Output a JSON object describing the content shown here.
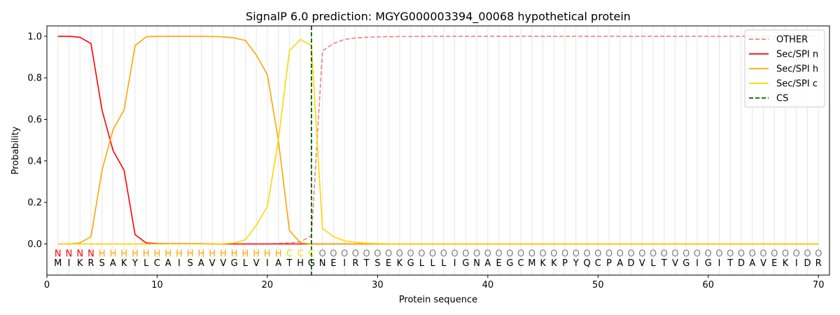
{
  "chart_data": {
    "type": "line",
    "title": "SignalP 6.0 prediction: MGYG000003394_00068 hypothetical protein",
    "xlabel": "Protein sequence",
    "ylabel": "Probability",
    "xlim": [
      0,
      71
    ],
    "ylim": [
      -0.15,
      1.05
    ],
    "x_ticks": [
      0,
      10,
      20,
      30,
      40,
      50,
      60,
      70
    ],
    "y_ticks": [
      0.0,
      0.2,
      0.4,
      0.6,
      0.8,
      1.0
    ],
    "x_tick_labels": [
      "0",
      "10",
      "20",
      "30",
      "40",
      "50",
      "60",
      "70"
    ],
    "y_tick_labels": [
      "0.0",
      "0.2",
      "0.4",
      "0.6",
      "0.8",
      "1.0"
    ],
    "grid": "vertical lines at each residue",
    "legend_position": "top-right",
    "sequence": [
      "M",
      "I",
      "K",
      "R",
      "S",
      "A",
      "K",
      "Y",
      "L",
      "C",
      "A",
      "I",
      "S",
      "A",
      "V",
      "V",
      "G",
      "L",
      "V",
      "I",
      "A",
      "T",
      "H",
      "G",
      "N",
      "E",
      "I",
      "R",
      "T",
      "S",
      "E",
      "K",
      "G",
      "L",
      "L",
      "L",
      "I",
      "G",
      "N",
      "A",
      "E",
      "G",
      "C",
      "M",
      "K",
      "K",
      "P",
      "Y",
      "Q",
      "C",
      "P",
      "A",
      "D",
      "V",
      "L",
      "T",
      "V",
      "G",
      "I",
      "G",
      "I",
      "T",
      "D",
      "A",
      "V",
      "E",
      "K",
      "I",
      "D",
      "R"
    ],
    "labels": [
      "N",
      "N",
      "N",
      "N",
      "H",
      "H",
      "H",
      "H",
      "H",
      "H",
      "H",
      "H",
      "H",
      "H",
      "H",
      "H",
      "H",
      "H",
      "H",
      "H",
      "H",
      "C",
      "C",
      "C",
      "O",
      "O",
      "O",
      "O",
      "O",
      "O",
      "O",
      "O",
      "O",
      "O",
      "O",
      "O",
      "O",
      "O",
      "O",
      "O",
      "O",
      "O",
      "O",
      "O",
      "O",
      "O",
      "O",
      "O",
      "O",
      "O",
      "O",
      "O",
      "O",
      "O",
      "O",
      "O",
      "O",
      "O",
      "O",
      "O",
      "O",
      "O",
      "O",
      "O",
      "O",
      "O",
      "O",
      "O",
      "O",
      "O"
    ],
    "label_colors": {
      "N": "#ff0000",
      "H": "#ffa500",
      "C": "#ffd700",
      "O": "#808080"
    },
    "cs_position": 24,
    "series": [
      {
        "name": "OTHER",
        "color": "#f08080",
        "style": "dashed",
        "values": [
          0.0,
          0.0,
          0.0,
          0.0,
          0.0,
          0.0,
          0.0,
          0.0,
          0.0,
          0.0,
          0.0,
          0.0,
          0.0,
          0.0,
          0.0,
          0.0,
          0.0,
          0.0,
          0.0,
          0.0,
          0.002,
          0.005,
          0.01,
          0.04,
          0.93,
          0.965,
          0.985,
          0.992,
          0.995,
          0.997,
          0.998,
          0.999,
          0.999,
          1.0,
          1.0,
          1.0,
          1.0,
          1.0,
          1.0,
          1.0,
          1.0,
          1.0,
          1.0,
          1.0,
          1.0,
          1.0,
          1.0,
          1.0,
          1.0,
          1.0,
          1.0,
          1.0,
          1.0,
          1.0,
          1.0,
          1.0,
          1.0,
          1.0,
          1.0,
          1.0,
          1.0,
          1.0,
          1.0,
          1.0,
          1.0,
          1.0,
          1.0,
          1.0,
          1.0,
          1.0
        ]
      },
      {
        "name": "Sec/SPI n",
        "color": "#ff0000",
        "style": "solid",
        "values": [
          1.0,
          1.0,
          0.995,
          0.965,
          0.645,
          0.45,
          0.355,
          0.045,
          0.005,
          0.002,
          0.001,
          0.001,
          0.001,
          0.001,
          0.0,
          0.0,
          0.0,
          0.0,
          0.0,
          0.0,
          0.0,
          0.0,
          0.0,
          0.0,
          0.0,
          0.0,
          0.0,
          0.0,
          0.0,
          0.0,
          0.0,
          0.0,
          0.0,
          0.0,
          0.0,
          0.0,
          0.0,
          0.0,
          0.0,
          0.0,
          0.0,
          0.0,
          0.0,
          0.0,
          0.0,
          0.0,
          0.0,
          0.0,
          0.0,
          0.0,
          0.0,
          0.0,
          0.0,
          0.0,
          0.0,
          0.0,
          0.0,
          0.0,
          0.0,
          0.0,
          0.0,
          0.0,
          0.0,
          0.0,
          0.0,
          0.0,
          0.0,
          0.0,
          0.0,
          0.0
        ]
      },
      {
        "name": "Sec/SPI h",
        "color": "#ffa500",
        "style": "solid",
        "values": [
          0.0,
          0.0,
          0.005,
          0.035,
          0.355,
          0.55,
          0.645,
          0.955,
          0.997,
          1.0,
          1.0,
          1.0,
          1.0,
          1.0,
          0.999,
          0.997,
          0.992,
          0.98,
          0.91,
          0.815,
          0.5,
          0.065,
          0.005,
          0.0,
          0.0,
          0.0,
          0.0,
          0.0,
          0.0,
          0.0,
          0.0,
          0.0,
          0.0,
          0.0,
          0.0,
          0.0,
          0.0,
          0.0,
          0.0,
          0.0,
          0.0,
          0.0,
          0.0,
          0.0,
          0.0,
          0.0,
          0.0,
          0.0,
          0.0,
          0.0,
          0.0,
          0.0,
          0.0,
          0.0,
          0.0,
          0.0,
          0.0,
          0.0,
          0.0,
          0.0,
          0.0,
          0.0,
          0.0,
          0.0,
          0.0,
          0.0,
          0.0,
          0.0,
          0.0,
          0.0
        ]
      },
      {
        "name": "Sec/SPI c",
        "color": "#ffd700",
        "style": "solid",
        "values": [
          0.0,
          0.0,
          0.0,
          0.0,
          0.0,
          0.0,
          0.0,
          0.0,
          0.0,
          0.0,
          0.0,
          0.0,
          0.0,
          0.0,
          0.0,
          0.001,
          0.005,
          0.02,
          0.09,
          0.18,
          0.5,
          0.93,
          0.985,
          0.955,
          0.075,
          0.035,
          0.015,
          0.008,
          0.004,
          0.002,
          0.001,
          0.0,
          0.0,
          0.0,
          0.0,
          0.0,
          0.0,
          0.0,
          0.0,
          0.0,
          0.0,
          0.0,
          0.0,
          0.0,
          0.0,
          0.0,
          0.0,
          0.0,
          0.0,
          0.0,
          0.0,
          0.0,
          0.0,
          0.0,
          0.0,
          0.0,
          0.0,
          0.0,
          0.0,
          0.0,
          0.0,
          0.0,
          0.0,
          0.0,
          0.0,
          0.0,
          0.0,
          0.0,
          0.0,
          0.0
        ]
      }
    ],
    "legend": [
      {
        "name": "OTHER",
        "color": "#f08080",
        "style": "dashed"
      },
      {
        "name": "Sec/SPI n",
        "color": "#ff0000",
        "style": "solid"
      },
      {
        "name": "Sec/SPI h",
        "color": "#ffa500",
        "style": "solid"
      },
      {
        "name": "Sec/SPI c",
        "color": "#ffd700",
        "style": "solid"
      },
      {
        "name": "CS",
        "color": "#006400",
        "style": "dashed"
      }
    ]
  }
}
